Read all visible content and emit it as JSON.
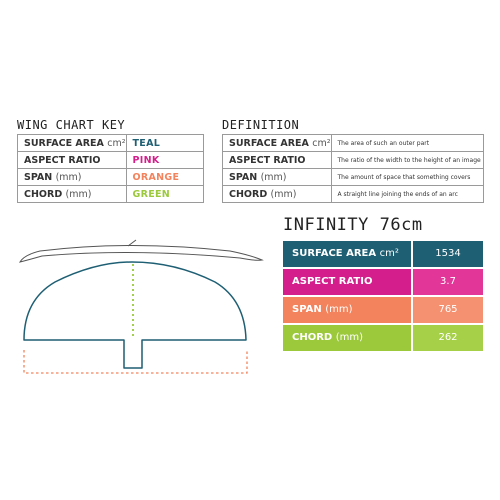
{
  "key_section": {
    "title": "WING CHART KEY",
    "rows": [
      {
        "label": "SURFACE AREA",
        "unit": "cm²",
        "color_name": "TEAL",
        "color": "#1e5f74"
      },
      {
        "label": "ASPECT RATIO",
        "unit": "",
        "color_name": "PINK",
        "color": "#d31e8c"
      },
      {
        "label": "SPAN",
        "unit": "(mm)",
        "color_name": "ORANGE",
        "color": "#f3835c"
      },
      {
        "label": "CHORD",
        "unit": "(mm)",
        "color_name": "GREEN",
        "color": "#9bc93b"
      }
    ]
  },
  "definition_section": {
    "title": "DEFINITION",
    "rows": [
      {
        "label": "SURFACE AREA",
        "unit": "cm²",
        "text": "The area of such an outer part"
      },
      {
        "label": "ASPECT RATIO",
        "unit": "",
        "text": "The ratio of the width to the height of an image"
      },
      {
        "label": "SPAN",
        "unit": "(mm)",
        "text": "The amount of space that something covers"
      },
      {
        "label": "CHORD",
        "unit": "(mm)",
        "text": "A straight line joining the ends of an arc"
      }
    ]
  },
  "product": {
    "title": "INFINITY 76cm",
    "specs": [
      {
        "label": "SURFACE AREA",
        "unit": "cm²",
        "value": "1534",
        "label_color": "#1e5f74",
        "value_color": "#1e5f74"
      },
      {
        "label": "ASPECT RATIO",
        "unit": "",
        "value": "3.7",
        "label_color": "#d31e8c",
        "value_color": "#e23699"
      },
      {
        "label": "SPAN",
        "unit": "(mm)",
        "value": "765",
        "label_color": "#f3835c",
        "value_color": "#f59170"
      },
      {
        "label": "CHORD",
        "unit": "(mm)",
        "value": "262",
        "label_color": "#9bc93b",
        "value_color": "#a6d048"
      }
    ]
  },
  "diagram": {
    "outline_color": "#1e5f74",
    "span_color": "#f3835c",
    "chord_color": "#9bc93b",
    "line_color": "#555555"
  }
}
